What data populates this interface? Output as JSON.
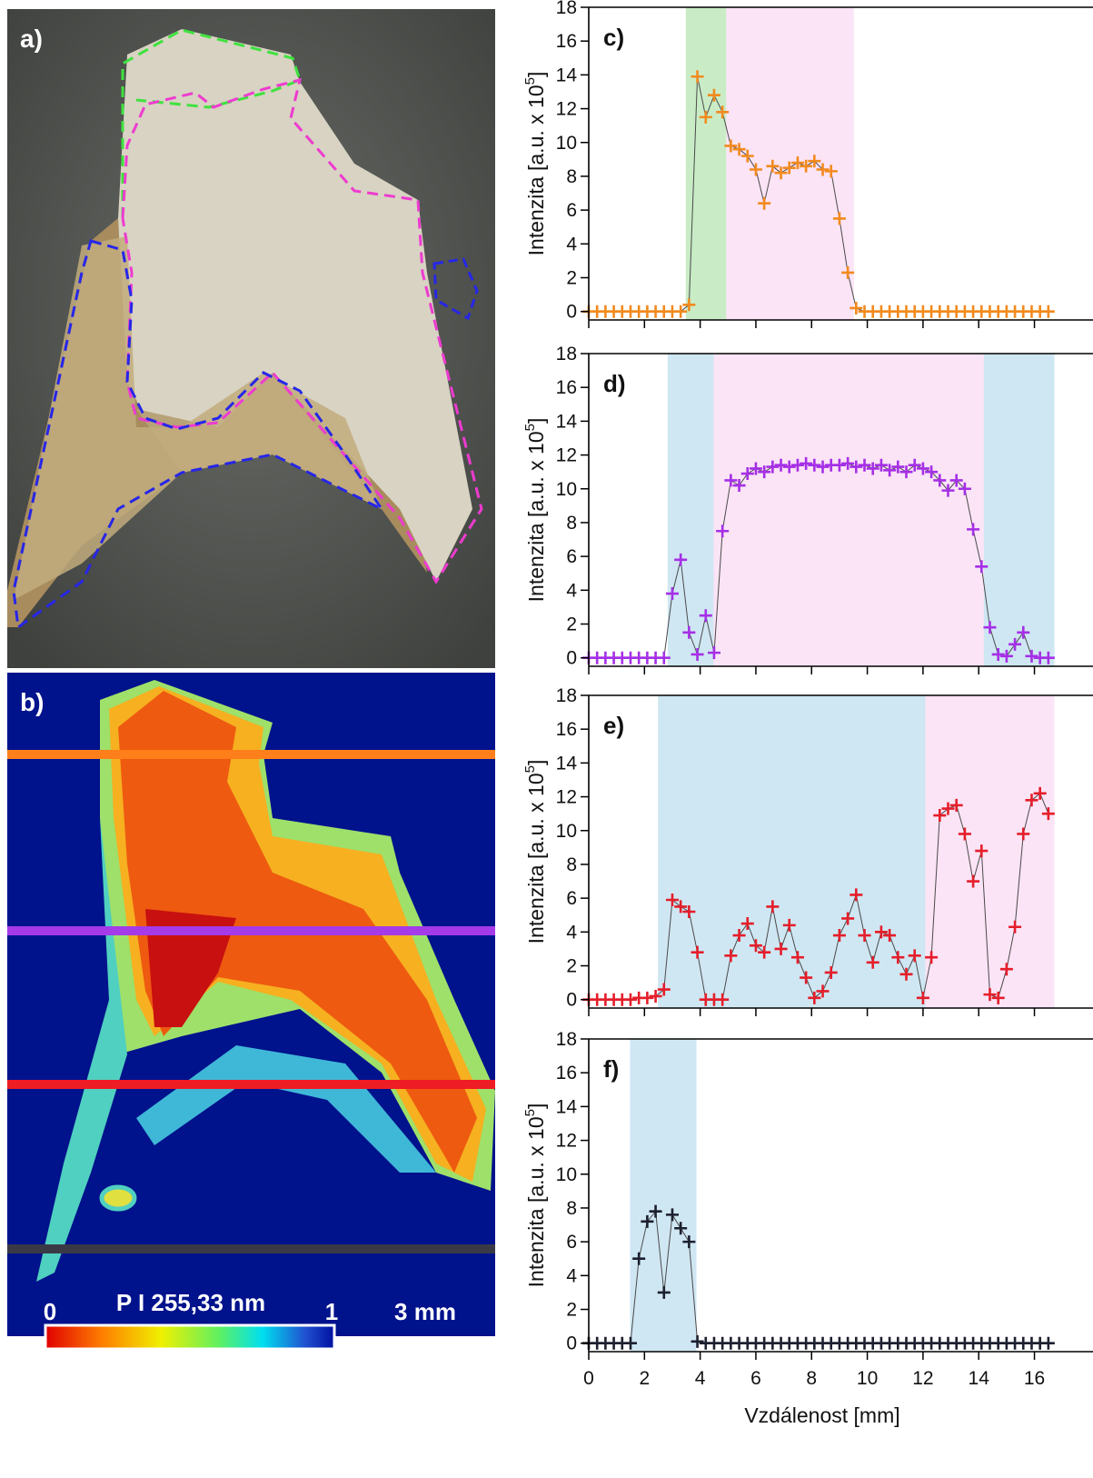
{
  "image_panels": {
    "a": {
      "label": "a)"
    },
    "b": {
      "label": "b)",
      "colorbar_title": "P I 255,33 nm",
      "colorbar_min": "0",
      "colorbar_max": "1",
      "scale_bar": "3 mm"
    }
  },
  "chart_data": [
    {
      "type": "line",
      "marker": "+",
      "panel_label": "c)",
      "color": "#f28a1e",
      "ylabel": {
        "text": "Intenzita [a.u. x 10",
        "sup": "5",
        "end": "]"
      },
      "xlim": [
        0,
        16.7
      ],
      "ylim": [
        -0.5,
        18
      ],
      "xticks": [
        0,
        2,
        4,
        6,
        8,
        10,
        12,
        14,
        16
      ],
      "yticks": [
        0,
        2,
        4,
        6,
        8,
        10,
        12,
        14,
        16,
        18
      ],
      "xtick_labels": false,
      "regions": [
        {
          "x0": 3.5,
          "x1": 4.95,
          "color": "#c9ecc6"
        },
        {
          "x0": 4.95,
          "x1": 9.5,
          "color": "#fbe4f6"
        }
      ],
      "x": [
        0,
        0.3,
        0.6,
        0.9,
        1.2,
        1.5,
        1.8,
        2.1,
        2.4,
        2.7,
        3,
        3.3,
        3.6,
        3.9,
        4.2,
        4.5,
        4.8,
        5.1,
        5.4,
        5.7,
        6,
        6.3,
        6.6,
        6.9,
        7.2,
        7.5,
        7.8,
        8.1,
        8.4,
        8.7,
        9,
        9.3,
        9.6,
        9.9,
        10.2,
        10.5,
        10.8,
        11.1,
        11.4,
        11.7,
        12,
        12.3,
        12.6,
        12.9,
        13.2,
        13.5,
        13.8,
        14.1,
        14.4,
        14.7,
        15,
        15.3,
        15.6,
        15.9,
        16.2,
        16.5
      ],
      "values": [
        0,
        0,
        0,
        0,
        0,
        0,
        0,
        0,
        0,
        0,
        0,
        0,
        0.4,
        13.9,
        11.5,
        12.8,
        11.8,
        9.8,
        9.6,
        9.2,
        8.4,
        6.4,
        8.6,
        8.2,
        8.5,
        8.8,
        8.6,
        8.9,
        8.4,
        8.3,
        5.5,
        2.3,
        0.2,
        0,
        0,
        0,
        0,
        0,
        0,
        0,
        0,
        0,
        0,
        0,
        0,
        0,
        0,
        0,
        0,
        0,
        0,
        0,
        0,
        0,
        0,
        0
      ]
    },
    {
      "type": "line",
      "marker": "+",
      "panel_label": "d)",
      "color": "#a52fe6",
      "ylabel": {
        "text": "Intenzita [a.u. x 10",
        "sup": "5",
        "end": "]"
      },
      "xlim": [
        0,
        16.7
      ],
      "ylim": [
        -0.5,
        18
      ],
      "xticks": [
        0,
        2,
        4,
        6,
        8,
        10,
        12,
        14,
        16
      ],
      "yticks": [
        0,
        2,
        4,
        6,
        8,
        10,
        12,
        14,
        16,
        18
      ],
      "xtick_labels": false,
      "regions": [
        {
          "x0": 2.85,
          "x1": 4.5,
          "color": "#cfe7f3"
        },
        {
          "x0": 4.5,
          "x1": 14.2,
          "color": "#fbe4f6"
        },
        {
          "x0": 14.2,
          "x1": 16.7,
          "color": "#cfe7f3"
        }
      ],
      "x": [
        0,
        0.3,
        0.6,
        0.9,
        1.2,
        1.5,
        1.8,
        2.1,
        2.4,
        2.7,
        3,
        3.3,
        3.6,
        3.9,
        4.2,
        4.5,
        4.8,
        5.1,
        5.4,
        5.7,
        6,
        6.3,
        6.6,
        6.9,
        7.2,
        7.5,
        7.8,
        8.1,
        8.4,
        8.7,
        9,
        9.3,
        9.6,
        9.9,
        10.2,
        10.5,
        10.8,
        11.1,
        11.4,
        11.7,
        12,
        12.3,
        12.6,
        12.9,
        13.2,
        13.5,
        13.8,
        14.1,
        14.4,
        14.7,
        15,
        15.3,
        15.6,
        15.9,
        16.2,
        16.5
      ],
      "values": [
        0,
        0,
        0,
        0,
        0,
        0,
        0,
        0,
        0,
        0,
        3.8,
        5.8,
        1.5,
        0.2,
        2.5,
        0.3,
        7.5,
        10.5,
        10.2,
        10.9,
        11.2,
        11.0,
        11.3,
        11.4,
        11.3,
        11.4,
        11.5,
        11.4,
        11.3,
        11.4,
        11.4,
        11.5,
        11.3,
        11.4,
        11.2,
        11.4,
        11.1,
        11.3,
        11.0,
        11.4,
        11.2,
        11.0,
        10.5,
        9.9,
        10.5,
        10.0,
        7.6,
        5.4,
        1.8,
        0.2,
        0.1,
        0.8,
        1.5,
        0.1,
        0,
        0
      ]
    },
    {
      "type": "line",
      "marker": "+",
      "panel_label": "e)",
      "color": "#e41e2a",
      "ylabel": {
        "text": "Intenzita [a.u. x 10",
        "sup": "5",
        "end": "]"
      },
      "xlim": [
        0,
        16.7
      ],
      "ylim": [
        -0.5,
        18
      ],
      "xticks": [
        0,
        2,
        4,
        6,
        8,
        10,
        12,
        14,
        16
      ],
      "yticks": [
        0,
        2,
        4,
        6,
        8,
        10,
        12,
        14,
        16,
        18
      ],
      "xtick_labels": false,
      "regions": [
        {
          "x0": 2.5,
          "x1": 12.1,
          "color": "#cfe7f3"
        },
        {
          "x0": 12.1,
          "x1": 16.7,
          "color": "#fbe4f6"
        }
      ],
      "x": [
        0,
        0.3,
        0.6,
        0.9,
        1.2,
        1.5,
        1.8,
        2.1,
        2.4,
        2.7,
        3,
        3.3,
        3.6,
        3.9,
        4.2,
        4.5,
        4.8,
        5.1,
        5.4,
        5.7,
        6,
        6.3,
        6.6,
        6.9,
        7.2,
        7.5,
        7.8,
        8.1,
        8.4,
        8.7,
        9,
        9.3,
        9.6,
        9.9,
        10.2,
        10.5,
        10.8,
        11.1,
        11.4,
        11.7,
        12,
        12.3,
        12.6,
        12.9,
        13.2,
        13.5,
        13.8,
        14.1,
        14.4,
        14.7,
        15,
        15.3,
        15.6,
        15.9,
        16.2,
        16.5
      ],
      "values": [
        0,
        0,
        0,
        0,
        0,
        0,
        0.1,
        0.1,
        0.2,
        0.6,
        5.9,
        5.5,
        5.2,
        2.8,
        0,
        0,
        0,
        2.6,
        3.8,
        4.5,
        3.2,
        2.8,
        5.5,
        3.0,
        4.4,
        2.5,
        1.3,
        0.1,
        0.5,
        1.6,
        3.8,
        4.8,
        6.2,
        3.8,
        2.2,
        4.0,
        3.8,
        2.5,
        1.5,
        2.6,
        0.1,
        2.5,
        10.9,
        11.3,
        11.5,
        9.8,
        7.0,
        8.8,
        0.3,
        0.1,
        1.8,
        4.3,
        9.8,
        11.8,
        12.2,
        11.0
      ]
    },
    {
      "type": "line",
      "marker": "+",
      "panel_label": "f)",
      "color": "#1c1f2e",
      "ylabel": {
        "text": "Intenzita [a.u. x 10",
        "sup": "5",
        "end": "]"
      },
      "xlabel": "Vzdálenost [mm]",
      "xlim": [
        0,
        16.7
      ],
      "ylim": [
        -0.5,
        18
      ],
      "xticks": [
        0,
        2,
        4,
        6,
        8,
        10,
        12,
        14,
        16
      ],
      "yticks": [
        0,
        2,
        4,
        6,
        8,
        10,
        12,
        14,
        16,
        18
      ],
      "xtick_labels": true,
      "regions": [
        {
          "x0": 1.5,
          "x1": 3.85,
          "color": "#cfe7f3"
        }
      ],
      "x": [
        0,
        0.3,
        0.6,
        0.9,
        1.2,
        1.5,
        1.8,
        2.1,
        2.4,
        2.7,
        3,
        3.3,
        3.6,
        3.9,
        4.2,
        4.5,
        4.8,
        5.1,
        5.4,
        5.7,
        6,
        6.3,
        6.6,
        6.9,
        7.2,
        7.5,
        7.8,
        8.1,
        8.4,
        8.7,
        9,
        9.3,
        9.6,
        9.9,
        10.2,
        10.5,
        10.8,
        11.1,
        11.4,
        11.7,
        12,
        12.3,
        12.6,
        12.9,
        13.2,
        13.5,
        13.8,
        14.1,
        14.4,
        14.7,
        15,
        15.3,
        15.6,
        15.9,
        16.2,
        16.5
      ],
      "values": [
        0,
        0,
        0,
        0,
        0,
        0,
        5.0,
        7.2,
        7.8,
        3.0,
        7.6,
        6.8,
        6.0,
        0.1,
        0,
        0,
        0,
        0,
        0,
        0,
        0,
        0,
        0,
        0,
        0,
        0,
        0,
        0,
        0,
        0,
        0,
        0,
        0,
        0,
        0,
        0,
        0,
        0,
        0,
        0,
        0,
        0,
        0,
        0,
        0,
        0,
        0,
        0,
        0,
        0,
        0,
        0,
        0,
        0,
        0,
        0
      ]
    }
  ]
}
